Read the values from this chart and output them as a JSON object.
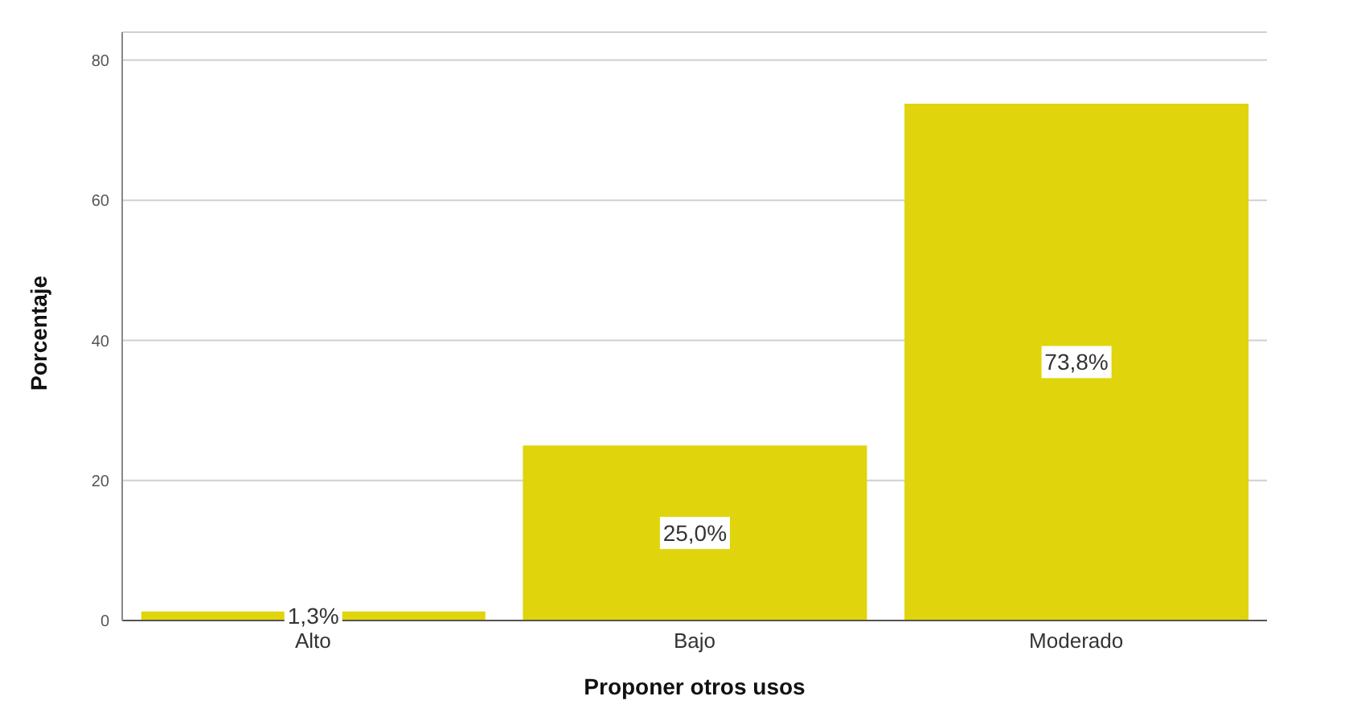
{
  "chart_data": {
    "type": "bar",
    "xlabel": "Proponer otros usos",
    "ylabel": "Porcentaje",
    "categories": [
      "Alto",
      "Bajo",
      "Moderado"
    ],
    "values": [
      1.3,
      25.0,
      73.8
    ],
    "value_labels": [
      "1,3%",
      "25,0%",
      "73,8%"
    ],
    "color": "#e0d40c",
    "ylim": [
      0,
      84
    ],
    "yticks": [
      0,
      20,
      40,
      60,
      80
    ],
    "grid": "y",
    "legend": false
  }
}
